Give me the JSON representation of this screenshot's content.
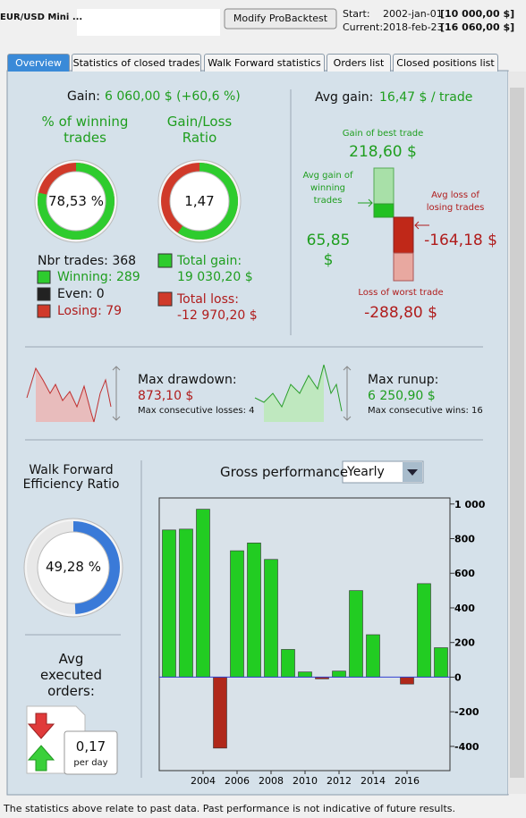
{
  "header": {
    "instrument": "EUR/USD Mini ...",
    "button": "Modify ProBacktest",
    "start_label": "Start:",
    "start_date": "2002-jan-01",
    "start_capital": "[10 000,00 $]",
    "current_label": "Current:",
    "current_date": "2018-feb-23",
    "current_capital": "[16 060,00 $]"
  },
  "tabs": [
    "Overview",
    "Statistics of closed trades",
    "Walk Forward statistics",
    "Orders list",
    "Closed positions list"
  ],
  "gain": {
    "label": "Gain:",
    "value": "6 060,00 $ (+60,6 %)"
  },
  "winning": {
    "title": "% of winning trades",
    "value": 78.53,
    "label": "78,53 %"
  },
  "ratio": {
    "title": "Gain/Loss Ratio",
    "value": 1.47,
    "label": "1,47"
  },
  "trades": {
    "nbr": "Nbr trades: 368",
    "winning": "Winning: 289",
    "even": "Even: 0",
    "losing": "Losing: 79"
  },
  "totals": {
    "gain_label": "Total gain:",
    "gain": "19 030,20 $",
    "loss_label": "Total loss:",
    "loss": "-12 970,20 $"
  },
  "avg": {
    "label": "Avg gain:",
    "value": "16,47 $ / trade",
    "best_label": "Gain of best trade",
    "best": "218,60 $",
    "win_label": "Avg gain of winning trades",
    "win": "65,85 $",
    "loss_label": "Avg loss of losing trades",
    "loss": "-164,18 $",
    "worst_label": "Loss of worst trade",
    "worst": "-288,80 $"
  },
  "drawdown": {
    "label": "Max drawdown:",
    "value": "873,10 $",
    "consecutive": "Max consecutive losses: 4"
  },
  "runup": {
    "label": "Max runup:",
    "value": "6 250,90 $",
    "consecutive": "Max consecutive wins: 16"
  },
  "wf": {
    "title": "Walk Forward Efficiency Ratio",
    "value": 49.28,
    "label": "49,28 %"
  },
  "orders": {
    "title": "Avg executed orders:",
    "value": "0,17",
    "unit": "per day"
  },
  "chart_data": {
    "type": "bar",
    "title": "Gross performance",
    "period": "Yearly",
    "categories": [
      null,
      null,
      "2004",
      null,
      "2006",
      null,
      "2008",
      null,
      "2010",
      null,
      "2012",
      null,
      "2014",
      null,
      "2016",
      null,
      null
    ],
    "values": [
      850,
      855,
      970,
      -410,
      730,
      775,
      680,
      160,
      30,
      -10,
      35,
      500,
      245,
      0,
      -40,
      540,
      170
    ],
    "color": "#22cc22",
    "negative_color": "#b0281a",
    "zero_line_color": "#3040d0",
    "ylim": [
      -540,
      1035
    ],
    "yticks": [
      -400,
      -200,
      0,
      200,
      400,
      600,
      800,
      {
        "value": 1000,
        "label": "1 000"
      }
    ]
  },
  "footer": "The statistics above relate to past data. Past performance is not indicative of future results."
}
